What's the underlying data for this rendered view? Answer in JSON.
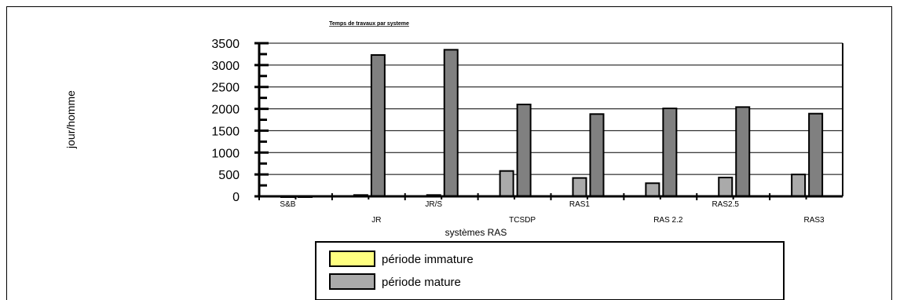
{
  "chart_data": {
    "type": "bar",
    "title": "Temps de travaux par systeme",
    "xlabel": "systèmes RAS",
    "ylabel": "jour/homme",
    "ylim": [
      0,
      3500
    ],
    "yticks": [
      0,
      500,
      1000,
      1500,
      2000,
      2500,
      3000,
      3500
    ],
    "categories": [
      "S&B",
      "JR",
      "JR/S",
      "TCSDP",
      "RAS1",
      "RAS 2.2",
      "RAS2.5",
      "RAS3"
    ],
    "series": [
      {
        "name": "période immature",
        "color": "#999999",
        "values": [
          0,
          30,
          30,
          580,
          420,
          300,
          430,
          500
        ]
      },
      {
        "name": "période mature",
        "color": "#666666",
        "values": [
          0,
          3230,
          3350,
          2100,
          1880,
          2010,
          2040,
          1890
        ]
      }
    ],
    "legend": {
      "placement": "bottom",
      "items": [
        {
          "label": "période immature",
          "color": "#ffff80"
        },
        {
          "label": "période mature",
          "color": "#aaaaaa"
        }
      ]
    },
    "grid": true
  }
}
